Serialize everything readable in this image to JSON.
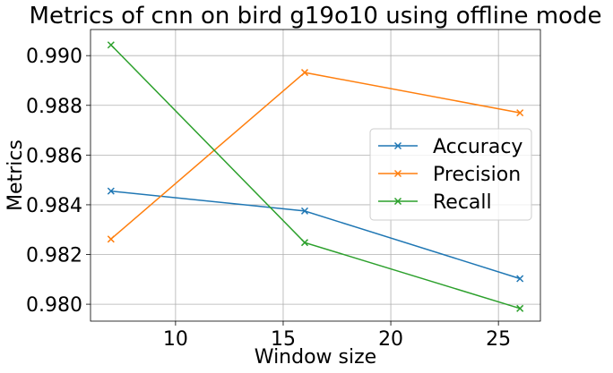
{
  "chart_data": {
    "type": "line",
    "title": "Metrics of cnn on bird g19o10 using offline mode",
    "xlabel": "Window size",
    "ylabel": "Metrics",
    "x": [
      7,
      16,
      26
    ],
    "xlim": [
      6.05,
      26.95
    ],
    "ylim": [
      0.97932,
      0.99105
    ],
    "xticks": [
      10,
      15,
      20,
      25
    ],
    "xtick_labels": [
      "10",
      "15",
      "20",
      "25"
    ],
    "yticks": [
      0.98,
      0.982,
      0.984,
      0.986,
      0.988,
      0.99
    ],
    "ytick_labels": [
      "0.980",
      "0.982",
      "0.984",
      "0.986",
      "0.988",
      "0.990"
    ],
    "grid": true,
    "legend_position": "center-right",
    "marker": "x",
    "series": [
      {
        "name": "Accuracy",
        "color": "#1f77b4",
        "values": [
          0.98455,
          0.98375,
          0.98103
        ]
      },
      {
        "name": "Precision",
        "color": "#ff7f0e",
        "values": [
          0.98262,
          0.98932,
          0.9877
        ]
      },
      {
        "name": "Recall",
        "color": "#2ca02c",
        "values": [
          0.99043,
          0.98248,
          0.97983
        ]
      }
    ]
  }
}
